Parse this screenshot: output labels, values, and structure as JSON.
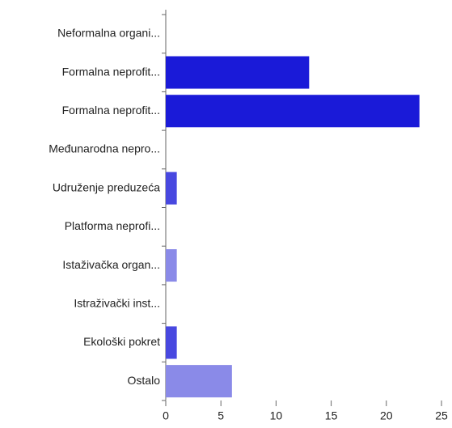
{
  "chart_data": {
    "type": "bar",
    "orientation": "horizontal",
    "categories": [
      "Neformalna organi...",
      "Formalna neprofit...",
      "Formalna neprofit...",
      "Međunarodna nepro...",
      "Udruženje preduzeća",
      "Platforma neprofi...",
      "Istaživačka organ...",
      "Istraživački inst...",
      "Ekološki pokret",
      "Ostalo"
    ],
    "values": [
      0,
      13,
      23,
      0,
      1,
      0,
      1,
      0,
      1,
      6
    ],
    "colors": [
      "#1a1ad8",
      "#1a1ad8",
      "#1a1ad8",
      "#4848e0",
      "#4848e0",
      "#8a8ae8",
      "#8a8ae8",
      "#4848e0",
      "#4848e0",
      "#8a8ae8"
    ],
    "xlim": [
      0,
      25
    ],
    "xticks": [
      0,
      5,
      10,
      15,
      20,
      25
    ]
  }
}
